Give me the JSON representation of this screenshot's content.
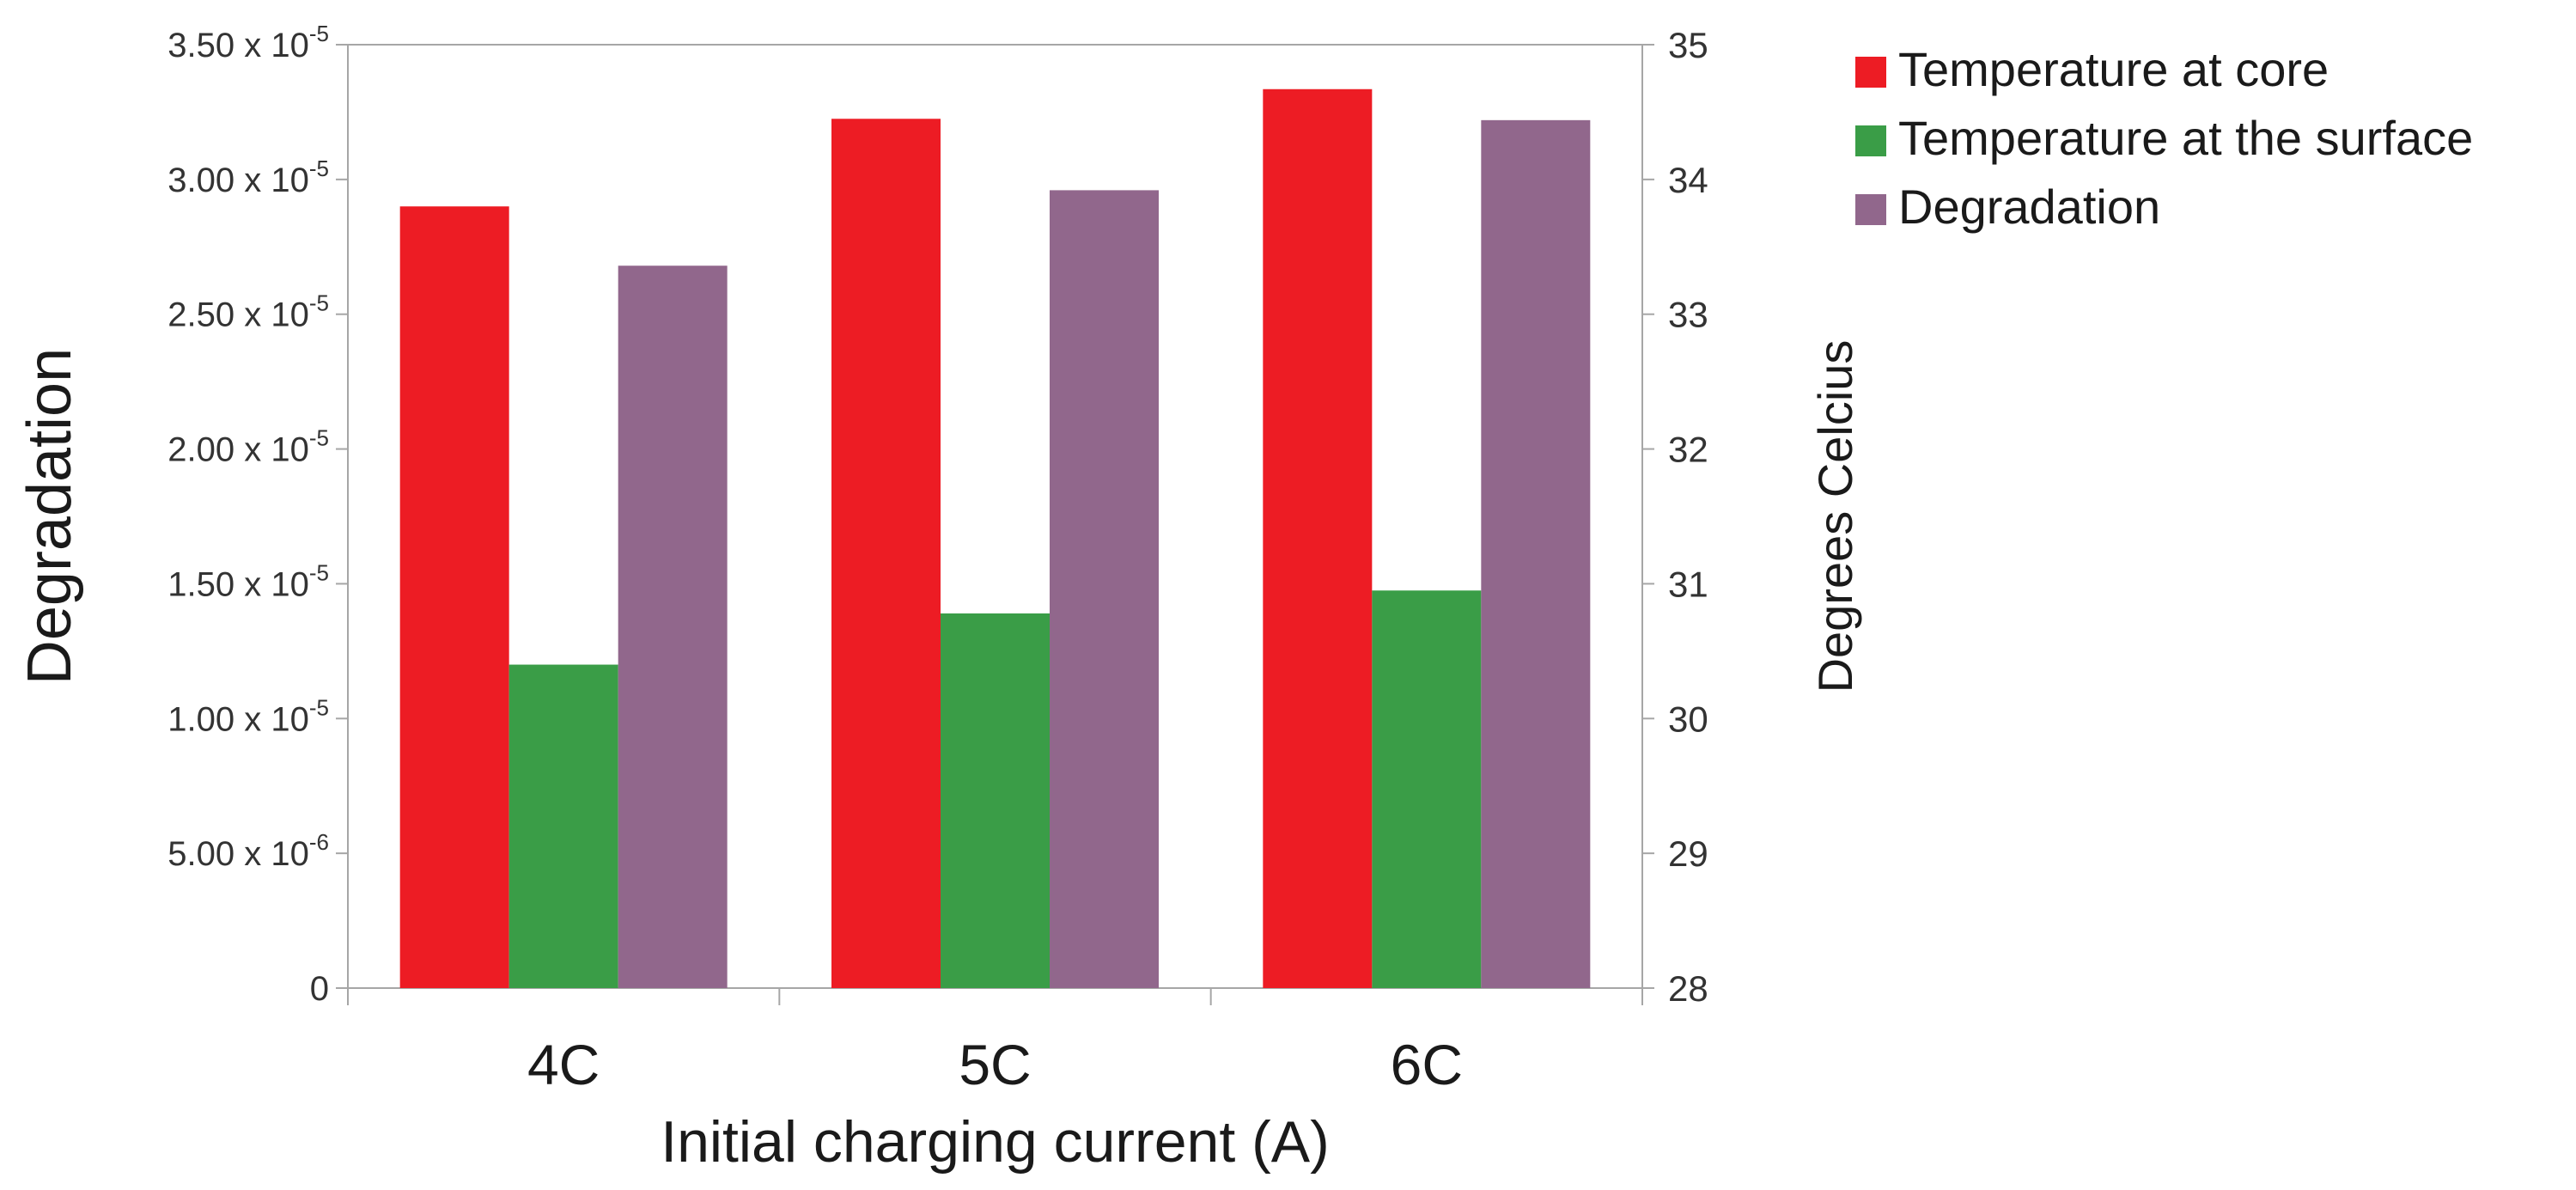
{
  "chart_data": {
    "type": "bar",
    "title": "",
    "xlabel": "Initial charging current (A)",
    "ylabel": "Degradation",
    "y2label": "Degrees Celcius",
    "categories": [
      "4C",
      "5C",
      "6C"
    ],
    "ylim": [
      0,
      3.5e-05
    ],
    "y2lim": [
      28,
      35
    ],
    "yticks": [
      {
        "value": 0,
        "mantissa": "0",
        "exponent": ""
      },
      {
        "value": 5e-06,
        "mantissa": "5.00 x 10",
        "exponent": "-6"
      },
      {
        "value": 1e-05,
        "mantissa": "1.00 x 10",
        "exponent": "-5"
      },
      {
        "value": 1.5e-05,
        "mantissa": "1.50 x 10",
        "exponent": "-5"
      },
      {
        "value": 2e-05,
        "mantissa": "2.00 x 10",
        "exponent": "-5"
      },
      {
        "value": 2.5e-05,
        "mantissa": "2.50 x 10",
        "exponent": "-5"
      },
      {
        "value": 3e-05,
        "mantissa": "3.00 x 10",
        "exponent": "-5"
      },
      {
        "value": 3.5e-05,
        "mantissa": "3.50 x 10",
        "exponent": "-5"
      }
    ],
    "y2ticks": [
      "28",
      "29",
      "30",
      "31",
      "32",
      "33",
      "34",
      "35"
    ],
    "grid": false,
    "legend_position": "top-right",
    "series": [
      {
        "name": "Temperature at core",
        "axis": "right",
        "color": "#ed1c24",
        "values": [
          33.8,
          34.45,
          34.67
        ]
      },
      {
        "name": "Temperature at the surface",
        "axis": "right",
        "color": "#3a9d47",
        "values": [
          30.4,
          30.78,
          30.95
        ]
      },
      {
        "name": "Degradation",
        "axis": "left",
        "color": "#91678c",
        "values": [
          2.68e-05,
          2.96e-05,
          3.22e-05
        ]
      }
    ]
  }
}
